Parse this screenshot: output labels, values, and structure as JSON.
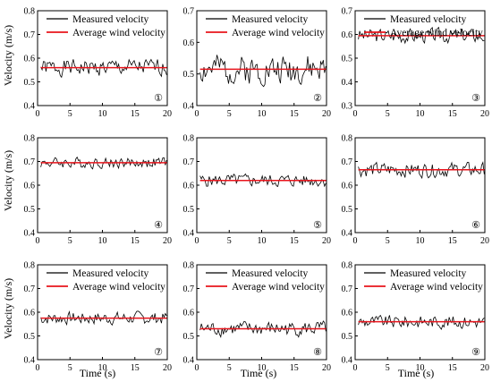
{
  "chart_data": [
    {
      "type": "line",
      "marker": "①",
      "xlim": [
        0,
        20
      ],
      "ylim": [
        0.4,
        0.8
      ],
      "xticks": [
        "0",
        "5",
        "10",
        "15",
        "20"
      ],
      "yticks": [
        "0.4",
        "0.5",
        "0.6",
        "0.7",
        "0.8"
      ],
      "legend": [
        "Measured velocity",
        "Average wind velocity"
      ],
      "series": [
        {
          "name": "Measured velocity",
          "base": 0.56,
          "amp": 0.045,
          "seed": 1
        },
        {
          "name": "Average wind velocity",
          "value": 0.56
        }
      ]
    },
    {
      "type": "line",
      "marker": "②",
      "xlim": [
        0,
        20
      ],
      "ylim": [
        0.4,
        0.7
      ],
      "xticks": [
        "0",
        "5",
        "10",
        "15",
        "20"
      ],
      "yticks": [
        "0.4",
        "0.5",
        "0.6",
        "0.7"
      ],
      "legend": [
        "Measured velocity",
        "Average wind velocity"
      ],
      "series": [
        {
          "name": "Measured velocity",
          "base": 0.515,
          "amp": 0.06,
          "seed": 2
        },
        {
          "name": "Average wind velocity",
          "value": 0.515
        }
      ]
    },
    {
      "type": "line",
      "marker": "③",
      "xlim": [
        0,
        20
      ],
      "ylim": [
        0.3,
        0.7
      ],
      "xticks": [
        "0",
        "5",
        "10",
        "15",
        "20"
      ],
      "yticks": [
        "0.3",
        "0.4",
        "0.5",
        "0.6",
        "0.7"
      ],
      "legend": [
        "Measured velocity",
        "Average wind velocity"
      ],
      "series": [
        {
          "name": "Measured velocity",
          "base": 0.595,
          "amp": 0.04,
          "seed": 3
        },
        {
          "name": "Average wind velocity",
          "value": 0.595
        }
      ]
    },
    {
      "type": "line",
      "marker": "④",
      "xlim": [
        0,
        20
      ],
      "ylim": [
        0.4,
        0.8
      ],
      "xticks": [
        "0",
        "5",
        "10",
        "15",
        "20"
      ],
      "yticks": [
        "0.4",
        "0.5",
        "0.6",
        "0.7",
        "0.8"
      ],
      "legend": [],
      "series": [
        {
          "name": "Measured velocity",
          "base": 0.695,
          "amp": 0.03,
          "seed": 4
        },
        {
          "name": "Average wind velocity",
          "value": 0.695
        }
      ]
    },
    {
      "type": "line",
      "marker": "⑤",
      "xlim": [
        0,
        20
      ],
      "ylim": [
        0.4,
        0.8
      ],
      "xticks": [
        "0",
        "5",
        "10",
        "15",
        "20"
      ],
      "yticks": [
        "0.4",
        "0.5",
        "0.6",
        "0.7",
        "0.8"
      ],
      "legend": [],
      "series": [
        {
          "name": "Measured velocity",
          "base": 0.62,
          "amp": 0.035,
          "seed": 5
        },
        {
          "name": "Average wind velocity",
          "value": 0.62
        }
      ]
    },
    {
      "type": "line",
      "marker": "⑥",
      "xlim": [
        0,
        20
      ],
      "ylim": [
        0.4,
        0.8
      ],
      "xticks": [
        "0",
        "5",
        "10",
        "15",
        "20"
      ],
      "yticks": [
        "0.4",
        "0.5",
        "0.6",
        "0.7",
        "0.8"
      ],
      "legend": [],
      "series": [
        {
          "name": "Measured velocity",
          "base": 0.665,
          "amp": 0.04,
          "seed": 6
        },
        {
          "name": "Average wind velocity",
          "value": 0.665
        }
      ]
    },
    {
      "type": "line",
      "marker": "⑦",
      "xlim": [
        0,
        20
      ],
      "ylim": [
        0.4,
        0.8
      ],
      "xticks": [
        "0",
        "5",
        "10",
        "15",
        "20"
      ],
      "yticks": [
        "0.4",
        "0.5",
        "0.6",
        "0.7",
        "0.8"
      ],
      "legend": [
        "Measured velocity",
        "Average wind velocity"
      ],
      "series": [
        {
          "name": "Measured velocity",
          "base": 0.575,
          "amp": 0.035,
          "seed": 7
        },
        {
          "name": "Average wind velocity",
          "value": 0.575
        }
      ]
    },
    {
      "type": "line",
      "marker": "⑧",
      "xlim": [
        0,
        20
      ],
      "ylim": [
        0.4,
        0.8
      ],
      "xticks": [
        "0",
        "5",
        "10",
        "15",
        "20"
      ],
      "yticks": [
        "0.4",
        "0.5",
        "0.6",
        "0.7",
        "0.8"
      ],
      "legend": [
        "Measured velocity",
        "Average wind velocity"
      ],
      "series": [
        {
          "name": "Measured velocity",
          "base": 0.53,
          "amp": 0.04,
          "seed": 8
        },
        {
          "name": "Average wind velocity",
          "value": 0.53
        }
      ]
    },
    {
      "type": "line",
      "marker": "⑨",
      "xlim": [
        0,
        20
      ],
      "ylim": [
        0.4,
        0.8
      ],
      "xticks": [
        "0",
        "5",
        "10",
        "15",
        "20"
      ],
      "yticks": [
        "0.4",
        "0.5",
        "0.6",
        "0.7",
        "0.8"
      ],
      "legend": [
        "Measured velocity",
        "Average wind velocity"
      ],
      "series": [
        {
          "name": "Measured velocity",
          "base": 0.56,
          "amp": 0.035,
          "seed": 9
        },
        {
          "name": "Average wind velocity",
          "value": 0.56
        }
      ]
    }
  ],
  "labels": {
    "ylabel": "Velocity (m/s)",
    "xlabel": "Time (s)"
  },
  "colors": {
    "measured": "#000000",
    "average": "#e8141c"
  }
}
